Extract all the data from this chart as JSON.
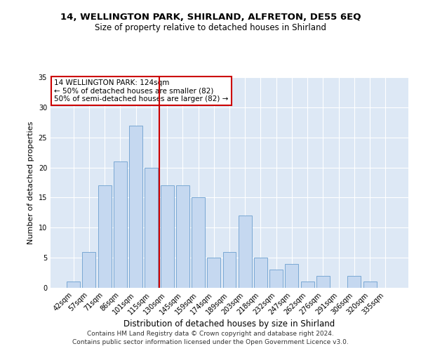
{
  "title1": "14, WELLINGTON PARK, SHIRLAND, ALFRETON, DE55 6EQ",
  "title2": "Size of property relative to detached houses in Shirland",
  "xlabel": "Distribution of detached houses by size in Shirland",
  "ylabel": "Number of detached properties",
  "categories": [
    "42sqm",
    "57sqm",
    "71sqm",
    "86sqm",
    "101sqm",
    "115sqm",
    "130sqm",
    "145sqm",
    "159sqm",
    "174sqm",
    "189sqm",
    "203sqm",
    "218sqm",
    "232sqm",
    "247sqm",
    "262sqm",
    "276sqm",
    "291sqm",
    "306sqm",
    "320sqm",
    "335sqm"
  ],
  "values": [
    1,
    6,
    17,
    21,
    27,
    20,
    17,
    17,
    15,
    5,
    6,
    12,
    5,
    3,
    4,
    1,
    2,
    0,
    2,
    1,
    0
  ],
  "bar_color": "#c5d8f0",
  "bar_edge_color": "#7aa8d4",
  "vline_x": 5.5,
  "vline_color": "#cc0000",
  "annotation_text": "14 WELLINGTON PARK: 124sqm\n← 50% of detached houses are smaller (82)\n50% of semi-detached houses are larger (82) →",
  "annotation_box_color": "#ffffff",
  "annotation_box_edge": "#cc0000",
  "footer1": "Contains HM Land Registry data © Crown copyright and database right 2024.",
  "footer2": "Contains public sector information licensed under the Open Government Licence v3.0.",
  "background_color": "#dde8f5",
  "ylim": [
    0,
    35
  ],
  "yticks": [
    0,
    5,
    10,
    15,
    20,
    25,
    30,
    35
  ]
}
